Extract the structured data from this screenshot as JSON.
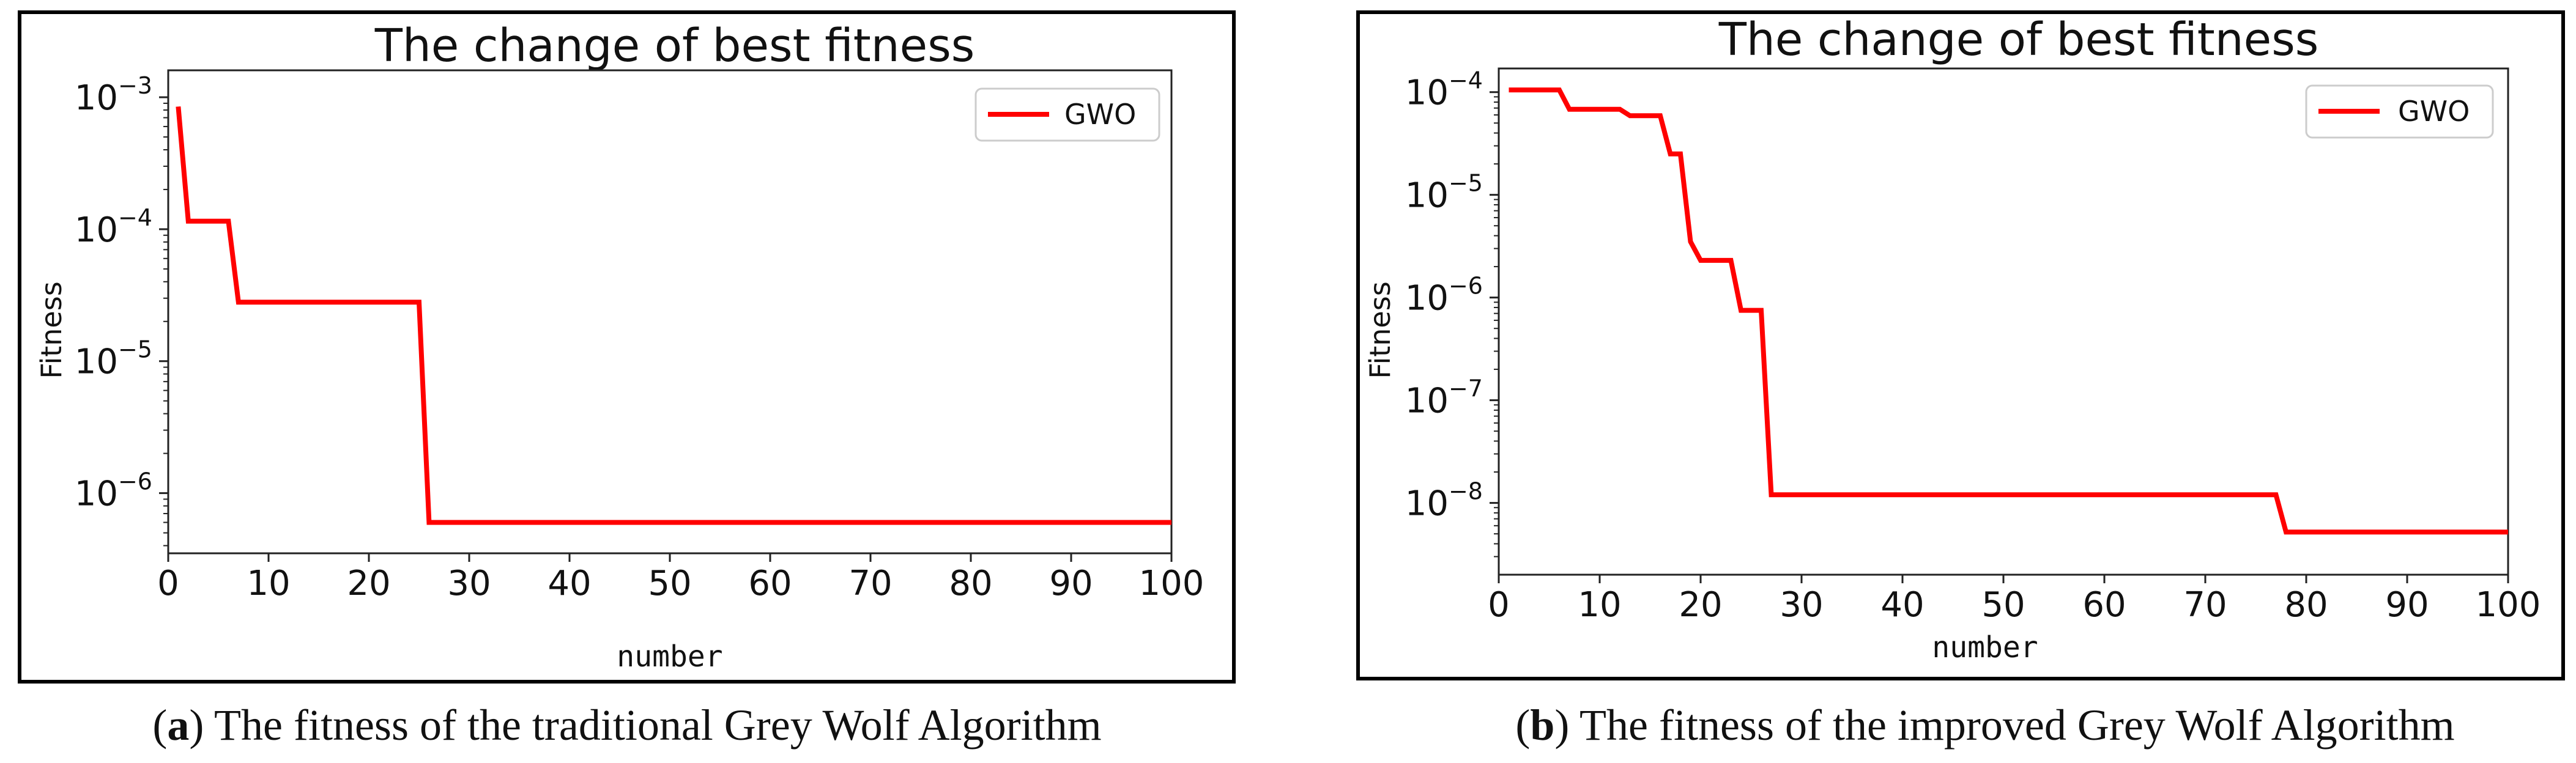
{
  "chart_data": [
    {
      "type": "line",
      "title": "The change of best fitness",
      "xlabel": "number",
      "ylabel": "Fitness",
      "yscale": "log",
      "xlim": [
        0,
        100
      ],
      "ylim": [
        3.5e-07,
        0.0016
      ],
      "xticks": [
        0,
        10,
        20,
        30,
        40,
        50,
        60,
        70,
        80,
        90,
        100
      ],
      "yticks": [
        {
          "value": 0.001,
          "base": "10",
          "exp": "−3"
        },
        {
          "value": 0.0001,
          "base": "10",
          "exp": "−4"
        },
        {
          "value": 1e-05,
          "base": "10",
          "exp": "−5"
        },
        {
          "value": 1e-06,
          "base": "10",
          "exp": "−6"
        }
      ],
      "legend_position": "upper-right",
      "series": [
        {
          "name": "GWO",
          "color": "#ff0000",
          "points": [
            [
              1,
              0.00085
            ],
            [
              2,
              0.000115
            ],
            [
              6,
              0.000115
            ],
            [
              7,
              2.8e-05
            ],
            [
              25,
              2.8e-05
            ],
            [
              26,
              6e-07
            ],
            [
              100,
              6e-07
            ]
          ]
        }
      ],
      "caption": {
        "label": "a",
        "text": " The fitness of the traditional Grey Wolf Algorithm"
      }
    },
    {
      "type": "line",
      "title": "The change of best fitness",
      "xlabel": "number",
      "ylabel": "Fitness",
      "yscale": "log",
      "xlim": [
        0,
        100
      ],
      "ylim": [
        2e-09,
        0.00017
      ],
      "xticks": [
        0,
        10,
        20,
        30,
        40,
        50,
        60,
        70,
        80,
        90,
        100
      ],
      "yticks": [
        {
          "value": 0.0001,
          "base": "10",
          "exp": "−4"
        },
        {
          "value": 1e-05,
          "base": "10",
          "exp": "−5"
        },
        {
          "value": 1e-06,
          "base": "10",
          "exp": "−6"
        },
        {
          "value": 1e-07,
          "base": "10",
          "exp": "−7"
        },
        {
          "value": 1e-08,
          "base": "10",
          "exp": "−8"
        }
      ],
      "legend_position": "upper-right",
      "series": [
        {
          "name": "GWO",
          "color": "#ff0000",
          "points": [
            [
              1,
              0.000105
            ],
            [
              6,
              0.000105
            ],
            [
              7,
              6.8e-05
            ],
            [
              12,
              6.8e-05
            ],
            [
              13,
              5.9e-05
            ],
            [
              16,
              5.9e-05
            ],
            [
              17,
              2.5e-05
            ],
            [
              18,
              2.5e-05
            ],
            [
              19,
              3.5e-06
            ],
            [
              20,
              2.3e-06
            ],
            [
              23,
              2.3e-06
            ],
            [
              24,
              7.5e-07
            ],
            [
              26,
              7.5e-07
            ],
            [
              27,
              1.2e-08
            ],
            [
              77,
              1.2e-08
            ],
            [
              78,
              5.2e-09
            ],
            [
              100,
              5.2e-09
            ]
          ]
        }
      ],
      "caption": {
        "label": "b",
        "text": " The fitness of the improved Grey Wolf Algorithm"
      }
    }
  ]
}
